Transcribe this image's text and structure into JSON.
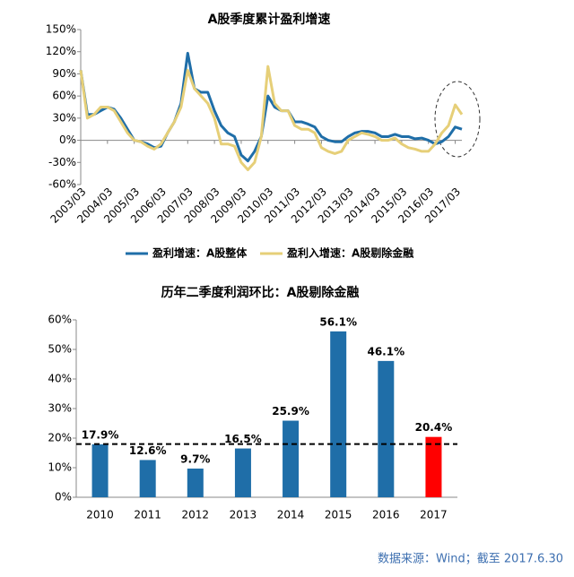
{
  "chart_data": [
    {
      "type": "line",
      "title": "A股季度累计盈利增速",
      "categories": [
        "2003/03",
        null,
        null,
        null,
        "2004/03",
        null,
        null,
        null,
        "2005/03",
        null,
        null,
        null,
        "2006/03",
        null,
        null,
        null,
        "2007/03",
        null,
        null,
        null,
        "2008/03",
        null,
        null,
        null,
        "2009/03",
        null,
        null,
        null,
        "2010/03",
        null,
        null,
        null,
        "2011/03",
        null,
        null,
        null,
        "2012/03",
        null,
        null,
        null,
        "2013/03",
        null,
        null,
        null,
        "2014/03",
        null,
        null,
        null,
        "2015/03",
        null,
        null,
        null,
        "2016/03",
        null,
        null,
        null,
        "2017/03",
        null
      ],
      "series": [
        {
          "name": "盈利增速：A股整体",
          "color": "#1f6ea8",
          "values": [
            95,
            35,
            35,
            40,
            45,
            42,
            30,
            15,
            0,
            -2,
            -5,
            -10,
            -8,
            10,
            25,
            50,
            118,
            70,
            65,
            65,
            40,
            20,
            10,
            5,
            -20,
            -28,
            -15,
            5,
            60,
            45,
            40,
            40,
            25,
            25,
            22,
            18,
            5,
            0,
            -2,
            -2,
            5,
            10,
            12,
            12,
            10,
            5,
            5,
            8,
            5,
            5,
            2,
            3,
            0,
            -5,
            -2,
            5,
            18,
            15
          ]
        },
        {
          "name": "盈利入增速：A股剔除金融",
          "color": "#e6cf78",
          "values": [
            95,
            30,
            35,
            45,
            45,
            40,
            25,
            10,
            0,
            -2,
            -8,
            -12,
            -5,
            10,
            25,
            45,
            95,
            70,
            60,
            50,
            30,
            -5,
            -5,
            -8,
            -30,
            -40,
            -30,
            5,
            100,
            50,
            40,
            40,
            20,
            15,
            15,
            10,
            -10,
            -15,
            -18,
            -15,
            0,
            5,
            10,
            8,
            5,
            0,
            0,
            3,
            -5,
            -10,
            -12,
            -15,
            -15,
            -5,
            10,
            20,
            48,
            35
          ]
        }
      ],
      "ylim": [
        -60,
        150
      ],
      "yticks": [
        {
          "value": -60,
          "label": "-60%"
        },
        {
          "value": -30,
          "label": "-30%"
        },
        {
          "value": 0,
          "label": "0%"
        },
        {
          "value": 30,
          "label": "30%"
        },
        {
          "value": 60,
          "label": "60%"
        },
        {
          "value": 90,
          "label": "90%"
        },
        {
          "value": 120,
          "label": "120%"
        },
        {
          "value": 150,
          "label": "150%"
        }
      ]
    },
    {
      "type": "bar",
      "title": "历年二季度利润环比：A股剔除金融",
      "categories": [
        "2010",
        "2011",
        "2012",
        "2013",
        "2014",
        "2015",
        "2016",
        "2017"
      ],
      "values": [
        17.9,
        12.6,
        9.7,
        16.5,
        25.9,
        56.1,
        46.1,
        20.4
      ],
      "value_labels": [
        "17.9%",
        "12.6%",
        "9.7%",
        "16.5%",
        "25.9%",
        "56.1%",
        "46.1%",
        "20.4%"
      ],
      "colors": [
        "#1f6ea8",
        "#1f6ea8",
        "#1f6ea8",
        "#1f6ea8",
        "#1f6ea8",
        "#1f6ea8",
        "#1f6ea8",
        "#ff0000"
      ],
      "reference_line": 18,
      "ylim": [
        0,
        60
      ],
      "yticks": [
        {
          "value": 0,
          "label": "0%"
        },
        {
          "value": 10,
          "label": "10%"
        },
        {
          "value": 20,
          "label": "20%"
        },
        {
          "value": 30,
          "label": "30%"
        },
        {
          "value": 40,
          "label": "40%"
        },
        {
          "value": 50,
          "label": "50%"
        },
        {
          "value": 60,
          "label": "60%"
        }
      ]
    }
  ],
  "source": "数据来源：Wind；截至 2017.6.30"
}
